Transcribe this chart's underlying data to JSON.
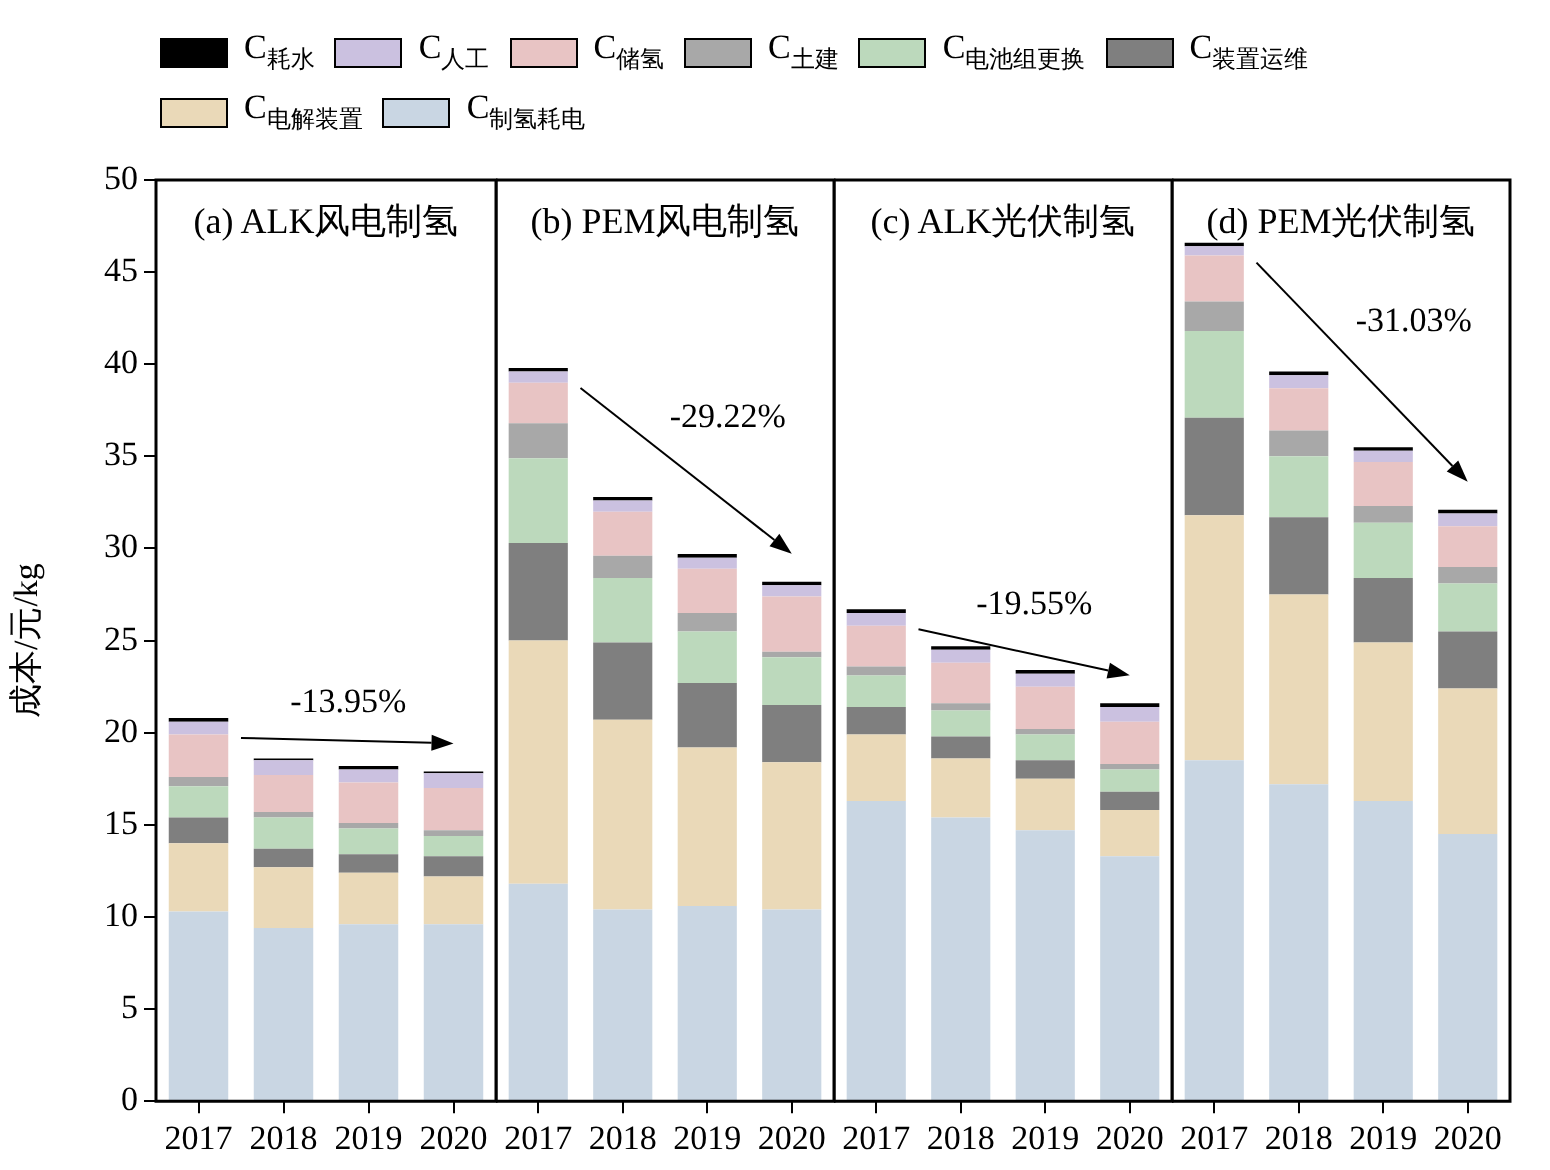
{
  "chart_data": [
    {
      "type": "bar",
      "title": "(a) ALK风电制氢",
      "ylabel": "成本/元/kg",
      "categories": [
        "2017",
        "2018",
        "2019",
        "2020"
      ],
      "stacked": true,
      "ylim": [
        0,
        50
      ],
      "yticks": [
        0,
        5,
        10,
        15,
        20,
        25,
        30,
        35,
        40,
        45,
        50
      ],
      "legend": "top",
      "annotations": [
        "-13.95%"
      ],
      "series": [
        {
          "name": "C$_{制氢耗电}$",
          "color": "#c9d6e3",
          "values": [
            10.3,
            9.4,
            9.6,
            9.6
          ]
        },
        {
          "name": "C$_{电解装置}$",
          "color": "#ead9b8",
          "values": [
            3.7,
            3.3,
            2.8,
            2.6
          ]
        },
        {
          "name": "C$_{装置运维}$",
          "color": "#7f7f7f",
          "values": [
            1.4,
            1.0,
            1.0,
            1.1
          ]
        },
        {
          "name": "C$_{电池组更换}$",
          "color": "#bcd9bc",
          "values": [
            1.7,
            1.7,
            1.4,
            1.1
          ]
        },
        {
          "name": "C$_{土建}$",
          "color": "#a8a8a8",
          "values": [
            0.5,
            0.3,
            0.3,
            0.3
          ]
        },
        {
          "name": "C$_{储氢}$",
          "color": "#e8c4c4",
          "values": [
            2.3,
            2.0,
            2.2,
            2.3
          ]
        },
        {
          "name": "C$_{人工}$",
          "color": "#cbc1e0",
          "values": [
            0.7,
            0.8,
            0.7,
            0.8
          ]
        },
        {
          "name": "C$_{耗水}$",
          "color": "#000000",
          "values": [
            0.2,
            0.1,
            0.2,
            0.1
          ]
        }
      ]
    },
    {
      "type": "bar",
      "title": "(b) PEM风电制氢",
      "categories": [
        "2017",
        "2018",
        "2019",
        "2020"
      ],
      "stacked": true,
      "ylim": [
        0,
        50
      ],
      "yticks": [
        0,
        5,
        10,
        15,
        20,
        25,
        30,
        35,
        40,
        45,
        50
      ],
      "tick_labels": "x",
      "annotations": [
        "-29.22%"
      ],
      "series": [
        {
          "color": "#c9d6e3",
          "values": [
            11.8,
            10.4,
            10.6,
            10.4
          ]
        },
        {
          "color": "#ead9b8",
          "values": [
            13.2,
            10.3,
            8.6,
            8.0
          ]
        },
        {
          "color": "#7f7f7f",
          "values": [
            5.3,
            4.2,
            3.5,
            3.1
          ]
        },
        {
          "color": "#bcd9bc",
          "values": [
            4.6,
            3.5,
            2.8,
            2.6
          ]
        },
        {
          "color": "#a8a8a8",
          "values": [
            1.9,
            1.2,
            1.0,
            0.3
          ]
        },
        {
          "color": "#e8c4c4",
          "values": [
            2.2,
            2.4,
            2.4,
            3.0
          ]
        },
        {
          "color": "#cbc1e0",
          "values": [
            0.6,
            0.6,
            0.6,
            0.6
          ]
        },
        {
          "color": "#000000",
          "values": [
            0.2,
            0.2,
            0.2,
            0.2
          ]
        }
      ]
    },
    {
      "type": "bar",
      "title": "(c) ALK光伏制氢",
      "categories": [
        "2017",
        "2018",
        "2019",
        "2020"
      ],
      "stacked": true,
      "ylim": [
        0,
        50
      ],
      "yticks": [
        0,
        5,
        10,
        15,
        20,
        25,
        30,
        35,
        40,
        45,
        50
      ],
      "tick_labels": "x",
      "annotations": [
        "-19.55%"
      ],
      "series": [
        {
          "color": "#c9d6e3",
          "values": [
            16.3,
            15.4,
            14.7,
            13.3
          ]
        },
        {
          "color": "#ead9b8",
          "values": [
            3.6,
            3.2,
            2.8,
            2.5
          ]
        },
        {
          "color": "#7f7f7f",
          "values": [
            1.5,
            1.2,
            1.0,
            1.0
          ]
        },
        {
          "color": "#bcd9bc",
          "values": [
            1.7,
            1.4,
            1.4,
            1.2
          ]
        },
        {
          "color": "#a8a8a8",
          "values": [
            0.5,
            0.4,
            0.3,
            0.3
          ]
        },
        {
          "color": "#e8c4c4",
          "values": [
            2.2,
            2.2,
            2.3,
            2.3
          ]
        },
        {
          "color": "#cbc1e0",
          "values": [
            0.7,
            0.7,
            0.7,
            0.8
          ]
        },
        {
          "color": "#000000",
          "values": [
            0.2,
            0.2,
            0.2,
            0.2
          ]
        }
      ]
    },
    {
      "type": "bar",
      "title": "(d) PEM光伏制氢",
      "categories": [
        "2017",
        "2018",
        "2019",
        "2020"
      ],
      "stacked": true,
      "ylim": [
        0,
        50
      ],
      "yticks": [
        0,
        5,
        10,
        15,
        20,
        25,
        30,
        35,
        40,
        45,
        50
      ],
      "tick_labels": "x",
      "annotations": [
        "-31.03%"
      ],
      "series": [
        {
          "color": "#c9d6e3",
          "values": [
            18.5,
            17.2,
            16.3,
            14.5
          ]
        },
        {
          "color": "#ead9b8",
          "values": [
            13.3,
            10.3,
            8.6,
            7.9
          ]
        },
        {
          "color": "#7f7f7f",
          "values": [
            5.3,
            4.2,
            3.5,
            3.1
          ]
        },
        {
          "color": "#bcd9bc",
          "values": [
            4.7,
            3.3,
            3.0,
            2.6
          ]
        },
        {
          "color": "#a8a8a8",
          "values": [
            1.6,
            1.4,
            0.9,
            0.9
          ]
        },
        {
          "color": "#e8c4c4",
          "values": [
            2.5,
            2.3,
            2.4,
            2.2
          ]
        },
        {
          "color": "#cbc1e0",
          "values": [
            0.5,
            0.7,
            0.6,
            0.7
          ]
        },
        {
          "color": "#000000",
          "values": [
            0.2,
            0.2,
            0.2,
            0.2
          ]
        }
      ]
    }
  ]
}
